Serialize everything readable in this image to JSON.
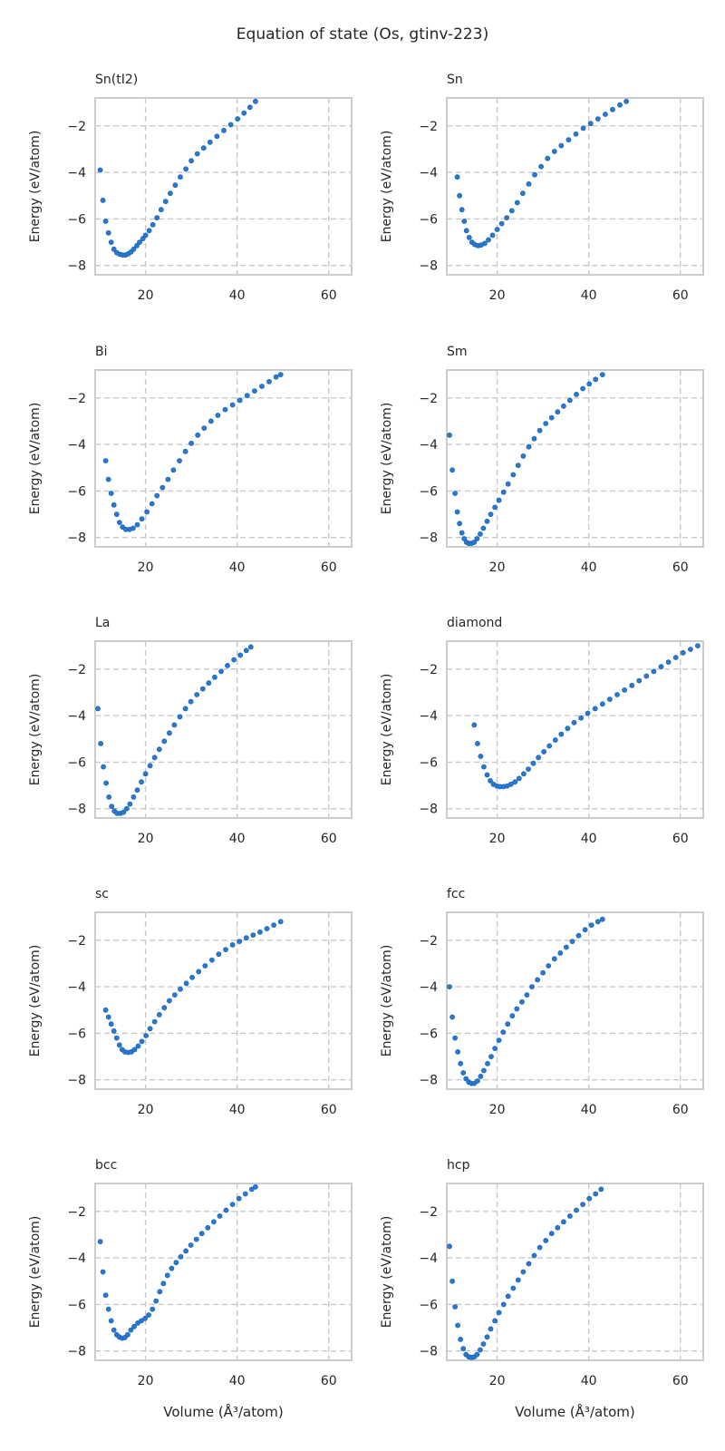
{
  "figure_title": "Equation of state (Os, gtinv-223)",
  "marker_color": "#2679d4",
  "chart_data": [
    {
      "type": "scatter",
      "title": "Sn(tI2)",
      "xlabel": "",
      "ylabel": "Energy (eV/atom)",
      "xlim": [
        9,
        65
      ],
      "ylim": [
        -8.4,
        -0.8
      ],
      "xticks": [
        20,
        40,
        60
      ],
      "yticks": [
        -8,
        -6,
        -4,
        -2
      ],
      "grid": true,
      "x": [
        10.1,
        10.7,
        11.3,
        11.9,
        12.5,
        13.1,
        13.7,
        14.4,
        15.0,
        15.6,
        16.2,
        16.8,
        17.4,
        18.1,
        18.7,
        19.4,
        20.0,
        20.8,
        21.6,
        22.5,
        23.4,
        24.4,
        25.4,
        26.5,
        27.6,
        28.8,
        30.0,
        31.3,
        32.7,
        34.1,
        35.6,
        37.1,
        38.6,
        40.1,
        41.5,
        42.8,
        44.0
      ],
      "y": [
        -3.9,
        -5.2,
        -6.1,
        -6.6,
        -7.0,
        -7.3,
        -7.45,
        -7.52,
        -7.55,
        -7.55,
        -7.5,
        -7.42,
        -7.3,
        -7.15,
        -7.0,
        -6.85,
        -6.7,
        -6.5,
        -6.25,
        -5.95,
        -5.6,
        -5.25,
        -4.9,
        -4.55,
        -4.2,
        -3.85,
        -3.5,
        -3.2,
        -2.95,
        -2.7,
        -2.45,
        -2.2,
        -1.95,
        -1.7,
        -1.45,
        -1.2,
        -0.95
      ]
    },
    {
      "type": "scatter",
      "title": "Sn",
      "xlabel": "",
      "ylabel": "Energy (eV/atom)",
      "xlim": [
        9,
        65
      ],
      "ylim": [
        -8.4,
        -0.8
      ],
      "xticks": [
        20,
        40,
        60
      ],
      "yticks": [
        -8,
        -6,
        -4,
        -2
      ],
      "grid": true,
      "x": [
        11.3,
        11.8,
        12.3,
        12.8,
        13.3,
        13.9,
        14.5,
        15.1,
        15.8,
        16.5,
        17.3,
        18.1,
        19.0,
        20.0,
        21.0,
        22.1,
        23.2,
        24.4,
        25.6,
        26.9,
        28.2,
        29.6,
        31.0,
        32.5,
        34.0,
        35.6,
        37.2,
        38.8,
        40.4,
        42.0,
        43.6,
        45.2,
        46.8,
        48.2
      ],
      "y": [
        -4.2,
        -5.0,
        -5.6,
        -6.1,
        -6.5,
        -6.8,
        -7.0,
        -7.1,
        -7.15,
        -7.12,
        -7.05,
        -6.9,
        -6.7,
        -6.45,
        -6.2,
        -5.95,
        -5.65,
        -5.3,
        -4.9,
        -4.5,
        -4.1,
        -3.75,
        -3.4,
        -3.1,
        -2.85,
        -2.6,
        -2.35,
        -2.1,
        -1.9,
        -1.7,
        -1.5,
        -1.3,
        -1.1,
        -0.95
      ]
    },
    {
      "type": "scatter",
      "title": "Bi",
      "xlabel": "",
      "ylabel": "Energy (eV/atom)",
      "xlim": [
        9,
        65
      ],
      "ylim": [
        -8.4,
        -0.8
      ],
      "xticks": [
        20,
        40,
        60
      ],
      "yticks": [
        -8,
        -6,
        -4,
        -2
      ],
      "grid": true,
      "x": [
        11.3,
        11.9,
        12.5,
        13.1,
        13.7,
        14.3,
        15.0,
        15.7,
        16.5,
        17.3,
        18.2,
        19.2,
        20.3,
        21.4,
        22.5,
        23.7,
        24.9,
        26.1,
        27.4,
        28.7,
        30.0,
        31.4,
        32.8,
        34.3,
        35.8,
        37.4,
        39.0,
        40.6,
        42.2,
        43.8,
        45.4,
        47.0,
        48.5,
        49.5
      ],
      "y": [
        -4.7,
        -5.5,
        -6.1,
        -6.6,
        -7.0,
        -7.35,
        -7.55,
        -7.65,
        -7.65,
        -7.6,
        -7.45,
        -7.2,
        -6.9,
        -6.55,
        -6.2,
        -5.85,
        -5.5,
        -5.1,
        -4.7,
        -4.3,
        -3.95,
        -3.6,
        -3.3,
        -3.0,
        -2.75,
        -2.5,
        -2.3,
        -2.1,
        -1.9,
        -1.7,
        -1.5,
        -1.3,
        -1.1,
        -1.0
      ]
    },
    {
      "type": "scatter",
      "title": "Sm",
      "xlabel": "",
      "ylabel": "Energy (eV/atom)",
      "xlim": [
        9,
        65
      ],
      "ylim": [
        -8.4,
        -0.8
      ],
      "xticks": [
        20,
        40,
        60
      ],
      "yticks": [
        -8,
        -6,
        -4,
        -2
      ],
      "grid": true,
      "x": [
        9.6,
        10.2,
        10.8,
        11.3,
        11.8,
        12.3,
        12.8,
        13.3,
        13.8,
        14.4,
        15.0,
        15.6,
        16.3,
        17.0,
        17.8,
        18.6,
        19.5,
        20.4,
        21.4,
        22.4,
        23.5,
        24.6,
        25.7,
        26.9,
        28.1,
        29.3,
        30.6,
        31.9,
        33.2,
        34.5,
        35.9,
        37.3,
        38.7,
        40.1,
        41.5,
        43.0
      ],
      "y": [
        -3.6,
        -5.1,
        -6.1,
        -6.9,
        -7.4,
        -7.8,
        -8.05,
        -8.2,
        -8.25,
        -8.25,
        -8.2,
        -8.05,
        -7.85,
        -7.6,
        -7.3,
        -7.0,
        -6.7,
        -6.4,
        -6.05,
        -5.7,
        -5.3,
        -4.9,
        -4.5,
        -4.1,
        -3.75,
        -3.4,
        -3.1,
        -2.85,
        -2.6,
        -2.35,
        -2.1,
        -1.85,
        -1.6,
        -1.4,
        -1.2,
        -1.0
      ]
    },
    {
      "type": "scatter",
      "title": "La",
      "xlabel": "",
      "ylabel": "Energy (eV/atom)",
      "xlim": [
        9,
        65
      ],
      "ylim": [
        -8.4,
        -0.8
      ],
      "xticks": [
        20,
        40,
        60
      ],
      "yticks": [
        -8,
        -6,
        -4,
        -2
      ],
      "grid": true,
      "x": [
        9.6,
        10.2,
        10.8,
        11.4,
        12.0,
        12.6,
        13.2,
        13.8,
        14.5,
        15.2,
        15.9,
        16.6,
        17.4,
        18.2,
        19.1,
        20.0,
        21.0,
        22.0,
        23.0,
        24.1,
        25.2,
        26.3,
        27.5,
        28.7,
        29.9,
        31.2,
        32.5,
        33.8,
        35.1,
        36.5,
        37.9,
        39.3,
        40.7,
        42.0,
        43.0
      ],
      "y": [
        -3.7,
        -5.2,
        -6.2,
        -6.9,
        -7.5,
        -7.9,
        -8.1,
        -8.2,
        -8.2,
        -8.15,
        -8.0,
        -7.8,
        -7.5,
        -7.2,
        -6.85,
        -6.5,
        -6.15,
        -5.8,
        -5.45,
        -5.1,
        -4.75,
        -4.4,
        -4.05,
        -3.7,
        -3.4,
        -3.1,
        -2.85,
        -2.6,
        -2.35,
        -2.1,
        -1.85,
        -1.6,
        -1.4,
        -1.2,
        -1.05
      ]
    },
    {
      "type": "scatter",
      "title": "diamond",
      "xlabel": "",
      "ylabel": "Energy (eV/atom)",
      "xlim": [
        9,
        65
      ],
      "ylim": [
        -8.4,
        -0.8
      ],
      "xticks": [
        20,
        40,
        60
      ],
      "yticks": [
        -8,
        -6,
        -4,
        -2
      ],
      "grid": true,
      "x": [
        15.0,
        15.7,
        16.4,
        17.1,
        17.8,
        18.5,
        19.2,
        19.9,
        20.6,
        21.4,
        22.2,
        23.0,
        23.9,
        24.8,
        25.8,
        26.8,
        27.9,
        29.0,
        30.2,
        31.4,
        32.7,
        34.0,
        35.4,
        36.8,
        38.3,
        39.8,
        41.4,
        43.0,
        44.6,
        46.2,
        47.8,
        49.4,
        51.0,
        52.6,
        54.2,
        55.8,
        57.4,
        59.0,
        60.6,
        62.2,
        63.8
      ],
      "y": [
        -4.4,
        -5.2,
        -5.75,
        -6.2,
        -6.55,
        -6.8,
        -6.95,
        -7.02,
        -7.05,
        -7.05,
        -7.02,
        -6.95,
        -6.85,
        -6.7,
        -6.5,
        -6.3,
        -6.05,
        -5.8,
        -5.55,
        -5.3,
        -5.05,
        -4.8,
        -4.55,
        -4.3,
        -4.1,
        -3.9,
        -3.7,
        -3.5,
        -3.3,
        -3.1,
        -2.9,
        -2.7,
        -2.5,
        -2.3,
        -2.1,
        -1.9,
        -1.7,
        -1.5,
        -1.3,
        -1.15,
        -1.0
      ]
    },
    {
      "type": "scatter",
      "title": "sc",
      "xlabel": "",
      "ylabel": "Energy (eV/atom)",
      "xlim": [
        9,
        65
      ],
      "ylim": [
        -8.4,
        -0.8
      ],
      "xticks": [
        20,
        40,
        60
      ],
      "yticks": [
        -8,
        -6,
        -4,
        -2
      ],
      "grid": true,
      "x": [
        11.3,
        11.9,
        12.5,
        13.1,
        13.7,
        14.3,
        14.9,
        15.5,
        16.2,
        16.9,
        17.6,
        18.4,
        19.2,
        20.1,
        21.0,
        22.0,
        23.0,
        24.1,
        25.2,
        26.4,
        27.6,
        28.9,
        30.2,
        31.6,
        33.0,
        34.5,
        36.0,
        37.5,
        39.0,
        40.5,
        42.0,
        43.5,
        45.0,
        46.5,
        48.0,
        49.5
      ],
      "y": [
        -5.0,
        -5.3,
        -5.6,
        -5.9,
        -6.2,
        -6.5,
        -6.7,
        -6.8,
        -6.82,
        -6.8,
        -6.7,
        -6.55,
        -6.35,
        -6.1,
        -5.8,
        -5.5,
        -5.2,
        -4.9,
        -4.6,
        -4.35,
        -4.1,
        -3.85,
        -3.6,
        -3.35,
        -3.1,
        -2.85,
        -2.6,
        -2.4,
        -2.2,
        -2.05,
        -1.9,
        -1.78,
        -1.65,
        -1.5,
        -1.35,
        -1.2
      ]
    },
    {
      "type": "scatter",
      "title": "fcc",
      "xlabel": "",
      "ylabel": "Energy (eV/atom)",
      "xlim": [
        9,
        65
      ],
      "ylim": [
        -8.4,
        -0.8
      ],
      "xticks": [
        20,
        40,
        60
      ],
      "yticks": [
        -8,
        -6,
        -4,
        -2
      ],
      "grid": true,
      "x": [
        9.6,
        10.2,
        10.8,
        11.4,
        12.0,
        12.6,
        13.2,
        13.8,
        14.4,
        15.0,
        15.7,
        16.4,
        17.1,
        17.9,
        18.7,
        19.5,
        20.4,
        21.3,
        22.3,
        23.3,
        24.3,
        25.4,
        26.5,
        27.6,
        28.8,
        30.0,
        31.2,
        32.5,
        33.8,
        35.1,
        36.4,
        37.8,
        39.2,
        40.6,
        42.0,
        43.0
      ],
      "y": [
        -4.0,
        -5.3,
        -6.2,
        -6.8,
        -7.3,
        -7.7,
        -7.95,
        -8.1,
        -8.15,
        -8.15,
        -8.05,
        -7.85,
        -7.6,
        -7.3,
        -7.0,
        -6.65,
        -6.3,
        -5.95,
        -5.6,
        -5.25,
        -4.95,
        -4.65,
        -4.35,
        -4.0,
        -3.7,
        -3.4,
        -3.1,
        -2.8,
        -2.55,
        -2.3,
        -2.05,
        -1.8,
        -1.55,
        -1.35,
        -1.2,
        -1.1
      ]
    },
    {
      "type": "scatter",
      "title": "bcc",
      "xlabel": "Volume (Å³/atom)",
      "ylabel": "Energy (eV/atom)",
      "xlim": [
        9,
        65
      ],
      "ylim": [
        -8.4,
        -0.8
      ],
      "xticks": [
        20,
        40,
        60
      ],
      "yticks": [
        -8,
        -6,
        -4,
        -2
      ],
      "grid": true,
      "x": [
        10.1,
        10.7,
        11.3,
        11.9,
        12.5,
        13.1,
        13.7,
        14.3,
        14.9,
        15.5,
        16.1,
        16.8,
        17.5,
        18.3,
        19.1,
        19.9,
        20.7,
        21.5,
        22.3,
        23.1,
        23.9,
        24.8,
        25.7,
        26.7,
        27.7,
        28.8,
        29.9,
        31.1,
        32.3,
        33.6,
        34.9,
        36.2,
        37.6,
        39.0,
        40.4,
        41.8,
        43.2,
        44.0
      ],
      "y": [
        -3.3,
        -4.6,
        -5.6,
        -6.2,
        -6.7,
        -7.1,
        -7.3,
        -7.4,
        -7.45,
        -7.42,
        -7.3,
        -7.1,
        -6.95,
        -6.8,
        -6.7,
        -6.6,
        -6.45,
        -6.2,
        -5.85,
        -5.45,
        -5.1,
        -4.75,
        -4.45,
        -4.2,
        -3.95,
        -3.7,
        -3.45,
        -3.2,
        -2.95,
        -2.7,
        -2.45,
        -2.2,
        -1.95,
        -1.7,
        -1.45,
        -1.25,
        -1.05,
        -0.95
      ]
    },
    {
      "type": "scatter",
      "title": "hcp",
      "xlabel": "Volume (Å³/atom)",
      "ylabel": "Energy (eV/atom)",
      "xlim": [
        9,
        65
      ],
      "ylim": [
        -8.4,
        -0.8
      ],
      "xticks": [
        20,
        40,
        60
      ],
      "yticks": [
        -8,
        -6,
        -4,
        -2
      ],
      "grid": true,
      "x": [
        9.6,
        10.2,
        10.8,
        11.4,
        12.0,
        12.6,
        13.2,
        13.8,
        14.4,
        15.0,
        15.6,
        16.3,
        17.0,
        17.8,
        18.6,
        19.5,
        20.4,
        21.4,
        22.4,
        23.5,
        24.6,
        25.7,
        26.9,
        28.1,
        29.3,
        30.6,
        31.9,
        33.2,
        34.5,
        35.9,
        37.3,
        38.7,
        40.1,
        41.5,
        42.7
      ],
      "y": [
        -3.5,
        -5.0,
        -6.1,
        -6.9,
        -7.5,
        -7.9,
        -8.15,
        -8.25,
        -8.28,
        -8.25,
        -8.15,
        -7.95,
        -7.7,
        -7.4,
        -7.05,
        -6.7,
        -6.35,
        -6.0,
        -5.65,
        -5.3,
        -4.95,
        -4.6,
        -4.25,
        -3.9,
        -3.55,
        -3.25,
        -2.95,
        -2.7,
        -2.45,
        -2.2,
        -1.95,
        -1.7,
        -1.45,
        -1.25,
        -1.05
      ]
    }
  ]
}
